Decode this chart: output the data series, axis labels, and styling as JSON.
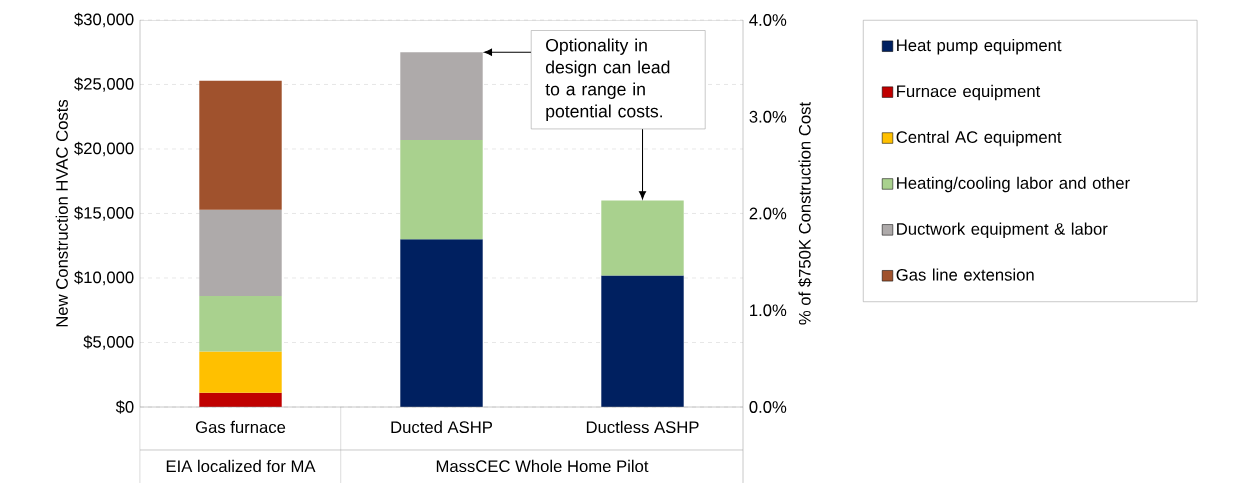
{
  "chart_data": {
    "type": "bar",
    "stacked": true,
    "categories": [
      "Gas furnace",
      "Ducted ASHP",
      "Ductless ASHP"
    ],
    "ylabel": "New Construction HVAC Costs",
    "y2label": "% of $750K Construction Cost",
    "ylim": [
      0,
      30000
    ],
    "yticks": [
      {
        "value": 0,
        "label": "$0"
      },
      {
        "value": 5000,
        "label": "$5,000"
      },
      {
        "value": 10000,
        "label": "$10,000"
      },
      {
        "value": 15000,
        "label": "$15,000"
      },
      {
        "value": 20000,
        "label": "$20,000"
      },
      {
        "value": 25000,
        "label": "$25,000"
      },
      {
        "value": 30000,
        "label": "$30,000"
      }
    ],
    "y2lim": [
      0,
      4
    ],
    "y2ticks": [
      {
        "value": 0,
        "label": "0.0%"
      },
      {
        "value": 1,
        "label": "1.0%"
      },
      {
        "value": 2,
        "label": "2.0%"
      },
      {
        "value": 3,
        "label": "3.0%"
      },
      {
        "value": 4,
        "label": "4.0%"
      }
    ],
    "grid": "y",
    "legend": "right",
    "annotations": [
      {
        "text": "Optionality in design can lead to a range in potential costs.",
        "x": "Ductless ASHP",
        "y": 16000
      },
      "EIA localized for MA",
      "MassCEC Whole Home Pilot"
    ],
    "series": [
      {
        "name": "Heat pump equipment",
        "color": "#002060",
        "values": [
          null,
          13000,
          10200
        ]
      },
      {
        "name": "Furnace equipment",
        "color": "#c00000",
        "values": [
          1100,
          null,
          null
        ]
      },
      {
        "name": "Central AC equipment",
        "color": "#ffc000",
        "values": [
          3200,
          null,
          null
        ]
      },
      {
        "name": "Heating/cooling labor and other",
        "color": "#a9d18e",
        "values": [
          4300,
          7700,
          5800
        ]
      },
      {
        "name": "Ductwork equipment & labor",
        "color": "#aeaaaa",
        "values": [
          6700,
          6800,
          null
        ]
      },
      {
        "name": "Gas line extension",
        "color": "#a0522d",
        "values": [
          10000,
          null,
          null
        ]
      }
    ]
  }
}
